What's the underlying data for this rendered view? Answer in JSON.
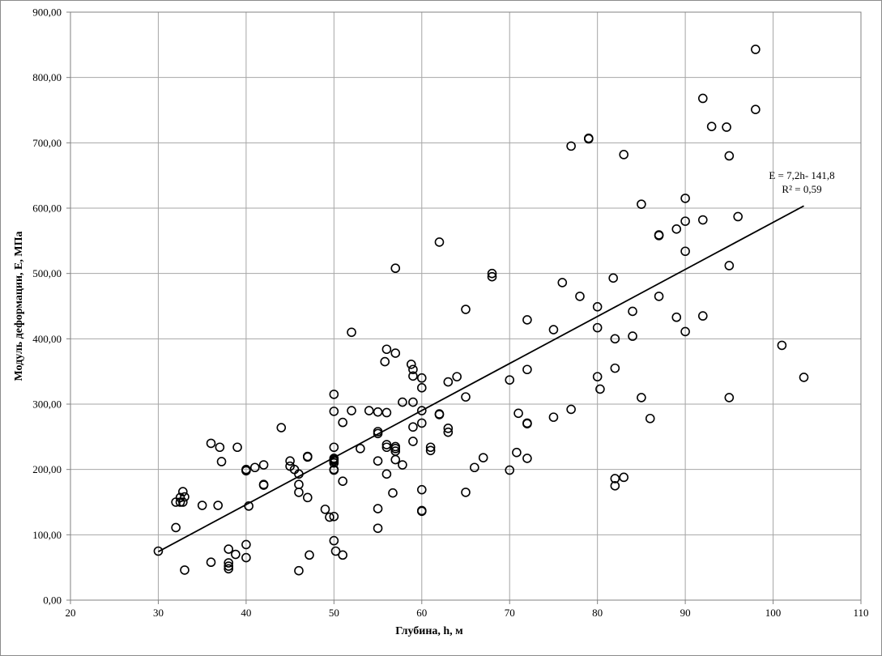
{
  "chart_data": {
    "type": "scatter",
    "xlabel": "Глубина, h, м",
    "ylabel": "Модуль деформации, E, МПа",
    "xlim": [
      20,
      110
    ],
    "ylim": [
      0,
      900
    ],
    "x_ticks": [
      "20",
      "30",
      "40",
      "50",
      "60",
      "70",
      "80",
      "90",
      "100",
      "110"
    ],
    "y_ticks": [
      "0,00",
      "100,00",
      "200,00",
      "300,00",
      "400,00",
      "500,00",
      "600,00",
      "700,00",
      "800,00",
      "900,00"
    ],
    "grid": true,
    "marker": "open-circle",
    "trendline": {
      "equation": "E = 7,2h- 141,8",
      "r2": "R² = 0,59",
      "slope": 7.2,
      "intercept": -141.8,
      "x_range": [
        30,
        103.5
      ]
    },
    "points": [
      [
        30,
        75
      ],
      [
        32,
        150
      ],
      [
        32,
        111
      ],
      [
        32.5,
        150
      ],
      [
        32.5,
        157
      ],
      [
        32.8,
        150
      ],
      [
        32.8,
        166
      ],
      [
        33,
        158
      ],
      [
        33,
        46
      ],
      [
        35,
        145
      ],
      [
        36,
        240
      ],
      [
        36,
        58
      ],
      [
        36.8,
        145
      ],
      [
        37,
        234
      ],
      [
        37.2,
        212
      ],
      [
        38,
        78
      ],
      [
        38,
        57
      ],
      [
        38,
        52
      ],
      [
        38,
        48
      ],
      [
        38.8,
        70
      ],
      [
        39,
        234
      ],
      [
        40,
        200
      ],
      [
        40,
        198
      ],
      [
        40,
        85
      ],
      [
        40,
        65
      ],
      [
        40.3,
        144
      ],
      [
        41,
        203
      ],
      [
        42,
        207
      ],
      [
        42,
        177
      ],
      [
        42,
        176
      ],
      [
        44,
        264
      ],
      [
        45,
        213
      ],
      [
        45,
        205
      ],
      [
        45.5,
        200
      ],
      [
        46,
        193
      ],
      [
        46,
        177
      ],
      [
        46,
        165
      ],
      [
        46,
        45
      ],
      [
        47,
        220
      ],
      [
        47,
        219
      ],
      [
        47,
        157
      ],
      [
        47.2,
        69
      ],
      [
        49,
        139
      ],
      [
        49.5,
        127
      ],
      [
        50,
        315
      ],
      [
        50,
        289
      ],
      [
        50,
        234
      ],
      [
        50,
        217
      ],
      [
        50,
        215
      ],
      [
        50,
        213
      ],
      [
        50,
        210
      ],
      [
        50,
        200
      ],
      [
        50,
        199
      ],
      [
        50,
        128
      ],
      [
        50,
        91
      ],
      [
        50.2,
        75
      ],
      [
        51,
        272
      ],
      [
        51,
        182
      ],
      [
        51,
        69
      ],
      [
        52,
        410
      ],
      [
        52,
        290
      ],
      [
        53,
        232
      ],
      [
        54,
        290
      ],
      [
        55,
        288
      ],
      [
        55,
        258
      ],
      [
        55,
        255
      ],
      [
        55,
        213
      ],
      [
        55,
        140
      ],
      [
        55,
        110
      ],
      [
        55.8,
        365
      ],
      [
        56,
        384
      ],
      [
        56,
        287
      ],
      [
        56,
        238
      ],
      [
        56,
        234
      ],
      [
        56,
        193
      ],
      [
        56.7,
        164
      ],
      [
        57,
        508
      ],
      [
        57,
        378
      ],
      [
        57,
        235
      ],
      [
        57,
        232
      ],
      [
        57,
        228
      ],
      [
        57,
        215
      ],
      [
        57.8,
        207
      ],
      [
        57.8,
        303
      ],
      [
        58.8,
        361
      ],
      [
        59,
        353
      ],
      [
        59,
        343
      ],
      [
        59,
        303
      ],
      [
        59,
        265
      ],
      [
        59,
        243
      ],
      [
        60,
        340
      ],
      [
        60,
        325
      ],
      [
        60,
        290
      ],
      [
        60,
        271
      ],
      [
        60,
        169
      ],
      [
        60,
        137
      ],
      [
        60,
        136
      ],
      [
        61,
        234
      ],
      [
        61,
        229
      ],
      [
        62,
        548
      ],
      [
        62,
        285
      ],
      [
        62,
        284
      ],
      [
        63,
        334
      ],
      [
        63,
        263
      ],
      [
        63,
        257
      ],
      [
        64,
        342
      ],
      [
        65,
        445
      ],
      [
        65,
        311
      ],
      [
        65,
        165
      ],
      [
        66,
        203
      ],
      [
        67,
        218
      ],
      [
        68,
        500
      ],
      [
        68,
        495
      ],
      [
        70,
        337
      ],
      [
        70,
        199
      ],
      [
        70.8,
        226
      ],
      [
        71,
        286
      ],
      [
        72,
        429
      ],
      [
        72,
        353
      ],
      [
        72,
        271
      ],
      [
        72,
        270
      ],
      [
        72,
        217
      ],
      [
        75,
        414
      ],
      [
        75,
        280
      ],
      [
        76,
        486
      ],
      [
        77,
        695
      ],
      [
        77,
        292
      ],
      [
        78,
        465
      ],
      [
        79,
        707
      ],
      [
        79,
        706
      ],
      [
        80,
        449
      ],
      [
        80,
        417
      ],
      [
        80,
        342
      ],
      [
        80.3,
        323
      ],
      [
        81.8,
        493
      ],
      [
        82,
        400
      ],
      [
        82,
        355
      ],
      [
        82,
        186
      ],
      [
        82,
        175
      ],
      [
        83,
        682
      ],
      [
        83,
        188
      ],
      [
        84,
        442
      ],
      [
        84,
        404
      ],
      [
        85,
        606
      ],
      [
        85,
        310
      ],
      [
        86,
        278
      ],
      [
        87,
        559
      ],
      [
        87,
        558
      ],
      [
        87,
        465
      ],
      [
        89,
        568
      ],
      [
        89,
        433
      ],
      [
        90,
        615
      ],
      [
        90,
        580
      ],
      [
        90,
        534
      ],
      [
        90,
        411
      ],
      [
        92,
        768
      ],
      [
        92,
        582
      ],
      [
        92,
        435
      ],
      [
        93,
        725
      ],
      [
        94.7,
        724
      ],
      [
        95,
        680
      ],
      [
        95,
        512
      ],
      [
        95,
        310
      ],
      [
        96,
        587
      ],
      [
        98,
        843
      ],
      [
        98,
        751
      ],
      [
        101,
        390
      ],
      [
        103.5,
        341
      ]
    ]
  }
}
